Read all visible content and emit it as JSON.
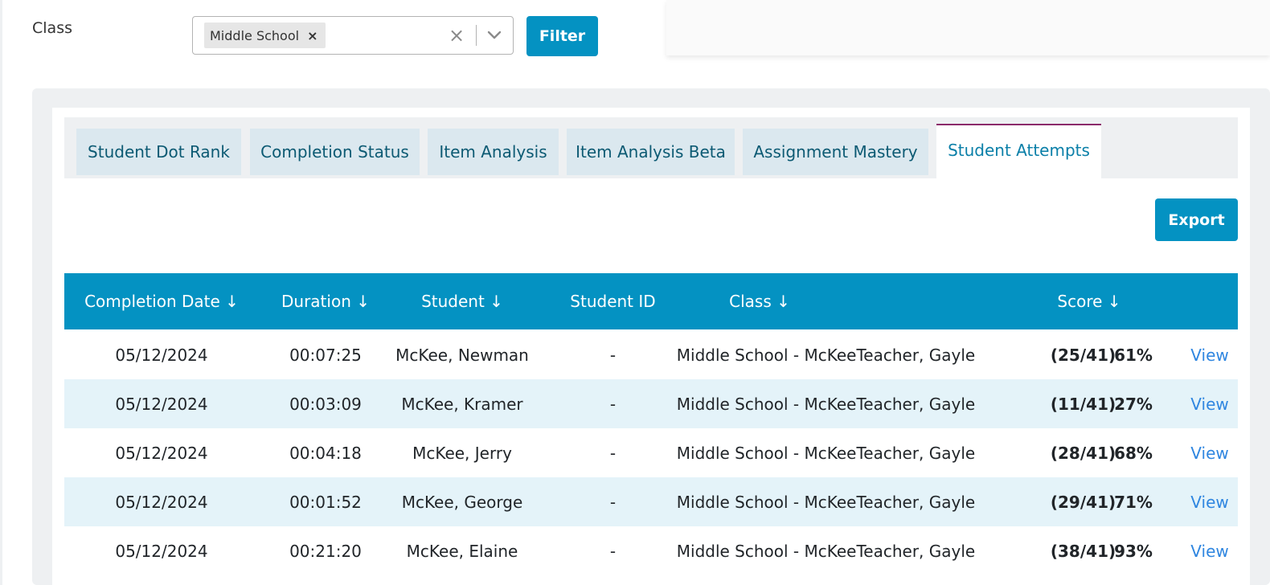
{
  "filter": {
    "label": "Class",
    "selected_chip": "Middle School",
    "chip_remove_glyph": "×",
    "clear_glyph": "×",
    "button_label": "Filter"
  },
  "tabs": [
    {
      "label": "Student Dot Rank",
      "active": false
    },
    {
      "label": "Completion Status",
      "active": false
    },
    {
      "label": "Item Analysis",
      "active": false
    },
    {
      "label": "Item Analysis Beta",
      "active": false
    },
    {
      "label": "Assignment Mastery",
      "active": false
    },
    {
      "label": "Student Attempts",
      "active": true
    }
  ],
  "export_label": "Export",
  "table": {
    "columns": [
      "Completion Date ↓",
      "Duration ↓",
      "Student ↓",
      "Student ID",
      "Class ↓",
      "Score ↓"
    ],
    "rows": [
      {
        "date": "05/12/2024",
        "duration": "00:07:25",
        "student": "McKee, Newman",
        "student_id": "-",
        "class": "Middle School - McKeeTeacher, Gayle",
        "fraction": "(25/41)",
        "percent": "61%",
        "action": "View"
      },
      {
        "date": "05/12/2024",
        "duration": "00:03:09",
        "student": "McKee, Kramer",
        "student_id": "-",
        "class": "Middle School - McKeeTeacher, Gayle",
        "fraction": "(11/41)",
        "percent": "27%",
        "action": "View"
      },
      {
        "date": "05/12/2024",
        "duration": "00:04:18",
        "student": "McKee, Jerry",
        "student_id": "-",
        "class": "Middle School - McKeeTeacher, Gayle",
        "fraction": "(28/41)",
        "percent": "68%",
        "action": "View"
      },
      {
        "date": "05/12/2024",
        "duration": "00:01:52",
        "student": "McKee, George",
        "student_id": "-",
        "class": "Middle School - McKeeTeacher, Gayle",
        "fraction": "(29/41)",
        "percent": "71%",
        "action": "View"
      },
      {
        "date": "05/12/2024",
        "duration": "00:21:20",
        "student": "McKee, Elaine",
        "student_id": "-",
        "class": "Middle School - McKeeTeacher, Gayle",
        "fraction": "(38/41)",
        "percent": "93%",
        "action": "View"
      }
    ]
  },
  "colors": {
    "primary": "#0492c2",
    "tab_bg": "#dbe8ef",
    "active_tab_border": "#8b2a6b",
    "row_alt": "#e4f3f9",
    "link": "#2f86e0"
  }
}
